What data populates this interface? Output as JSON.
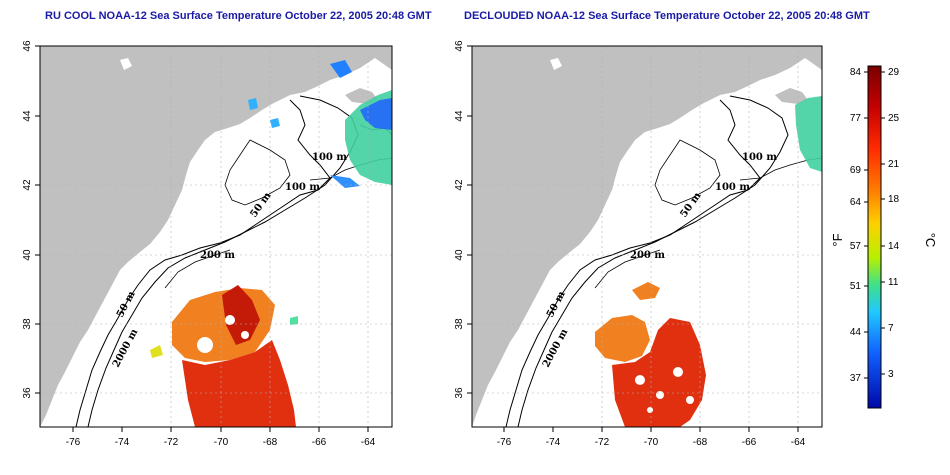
{
  "maps": [
    {
      "title": "RU COOL NOAA-12 Sea Surface Temperature October 22, 2005 20:48 GMT",
      "contour_labels": [
        "100 m",
        "100 m",
        "50 m",
        "200 m",
        "50 m",
        "2000 m"
      ]
    },
    {
      "title": "DECLOUDED NOAA-12 Sea Surface Temperature October 22, 2005 20:48 GMT",
      "contour_labels": [
        "100 m",
        "100 m",
        "50 m",
        "200 m",
        "50 m",
        "2000 m"
      ]
    }
  ],
  "axes": {
    "lon_ticks": [
      "-76",
      "-74",
      "-72",
      "-70",
      "-68",
      "-66",
      "-64"
    ],
    "lat_ticks": [
      "46",
      "44",
      "42",
      "40",
      "38",
      "36"
    ]
  },
  "colorbar": {
    "f_ticks": [
      "84",
      "77",
      "69",
      "64",
      "57",
      "51",
      "44",
      "37"
    ],
    "c_ticks": [
      "29",
      "25",
      "21",
      "18",
      "14",
      "11",
      "7",
      "3"
    ],
    "f_unit": "°F",
    "c_unit": "°C",
    "gradient": [
      "#7a0000",
      "#c40000",
      "#ff2a00",
      "#ff7a00",
      "#ffd000",
      "#b8f000",
      "#3ee08a",
      "#20c8ff",
      "#1060ff",
      "#0008a8"
    ]
  },
  "colors": {
    "land": "#c0c0c0",
    "warm_eddy": "#f08020",
    "gulf_stream": "#e03010",
    "cold_water": "#40d0a0",
    "cloud_blue": "#2060ff"
  }
}
